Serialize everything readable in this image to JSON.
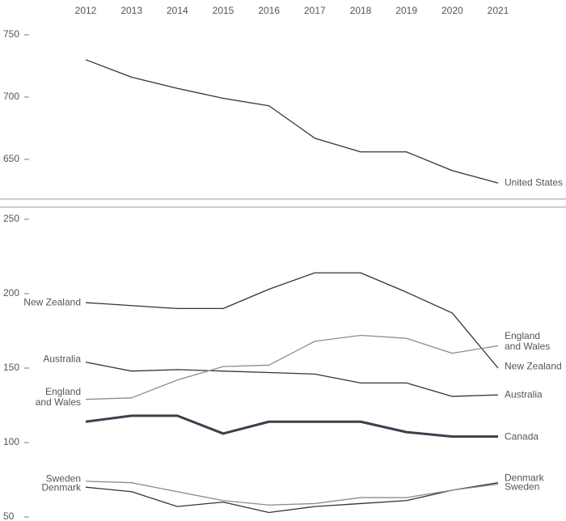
{
  "chart_data": [
    {
      "type": "line",
      "x": [
        2012,
        2013,
        2014,
        2015,
        2016,
        2017,
        2018,
        2019,
        2020,
        2021
      ],
      "xlim": [
        2012,
        2021
      ],
      "xticks": [
        2012,
        2013,
        2014,
        2015,
        2016,
        2017,
        2018,
        2019,
        2020,
        2021
      ],
      "ylim": [
        625,
        755
      ],
      "yticks": [
        650,
        700,
        750
      ],
      "series": [
        {
          "name": "United States",
          "color": "#2e3440",
          "values": [
            730,
            716,
            707,
            699,
            693,
            667,
            656,
            656,
            641,
            631
          ]
        }
      ]
    },
    {
      "type": "line",
      "x": [
        2012,
        2013,
        2014,
        2015,
        2016,
        2017,
        2018,
        2019,
        2020,
        2021
      ],
      "xlim": [
        2012,
        2021
      ],
      "ylim": [
        50,
        250
      ],
      "yticks": [
        50,
        100,
        150,
        200,
        250
      ],
      "series": [
        {
          "name": "New Zealand",
          "color": "#2e3440",
          "values": [
            194,
            192,
            190,
            190,
            203,
            214,
            214,
            201,
            187,
            150
          ]
        },
        {
          "name": "Australia",
          "color": "#2e3440",
          "values": [
            154,
            148,
            149,
            148,
            147,
            146,
            140,
            140,
            131,
            132
          ]
        },
        {
          "name": "England and Wales",
          "color": "#8c8c8c",
          "values": [
            129,
            130,
            142,
            151,
            152,
            168,
            172,
            170,
            160,
            165
          ]
        },
        {
          "name": "Canada",
          "color": "#3a404c",
          "line_width": 3,
          "values": [
            114,
            118,
            118,
            106,
            114,
            114,
            114,
            107,
            104,
            104
          ]
        },
        {
          "name": "Denmark",
          "color": "#2e3440",
          "values": [
            70,
            67,
            57,
            60,
            53,
            57,
            59,
            61,
            68,
            73
          ]
        },
        {
          "name": "Sweden",
          "color": "#8c8c8c",
          "values": [
            74,
            73,
            67,
            61,
            58,
            59,
            63,
            63,
            68,
            72
          ]
        }
      ]
    }
  ]
}
